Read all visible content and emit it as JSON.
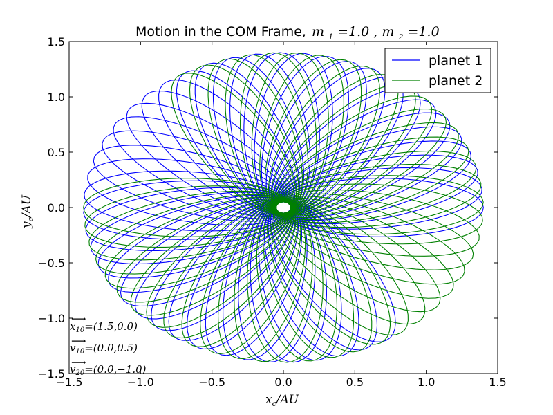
{
  "chart_data": {
    "type": "line",
    "title": "Motion in the COM Frame,",
    "title_math": [
      {
        "base": "m",
        "sub": "1",
        "value": " =1.0"
      },
      {
        "base": "m",
        "sub": "2",
        "value": " =1.0"
      }
    ],
    "xlabel": {
      "base": "x",
      "sub": "c",
      "rest": "/AU"
    },
    "ylabel": {
      "base": "y",
      "sub": "c",
      "rest": "/AU"
    },
    "xlim": [
      -1.5,
      1.5
    ],
    "ylim": [
      -1.5,
      1.5
    ],
    "xticks": [
      "−1.5",
      "−1.0",
      "−0.5",
      "0.0",
      "0.5",
      "1.0",
      "1.5"
    ],
    "yticks": [
      "−1.5",
      "−1.0",
      "−0.5",
      "0.0",
      "0.5",
      "1.0",
      "1.5"
    ],
    "xtick_values": [
      -1.5,
      -1.0,
      -0.5,
      0.0,
      0.5,
      1.0,
      1.5
    ],
    "ytick_values": [
      -1.5,
      -1.0,
      -0.5,
      0.0,
      0.5,
      1.0,
      1.5
    ],
    "grid": false,
    "legend_position": "top-right",
    "series": [
      {
        "name": "planet 1",
        "color": "#0000ff",
        "orbit_count": 44,
        "apoapsis_radius": 1.4,
        "periapsis_radius": 0.05,
        "precession_start_deg": 180,
        "precession_step_deg": 7
      },
      {
        "name": "planet 2",
        "color": "#008000",
        "orbit_count": 44,
        "apoapsis_radius": 1.4,
        "periapsis_radius": 0.05,
        "precession_start_deg": 0,
        "precession_step_deg": 7
      }
    ],
    "annotations": [
      {
        "vec": "x",
        "sub": "10",
        "text": "=(1.5,0.0)"
      },
      {
        "vec": "v",
        "sub": "10",
        "text": "=(0.0,0.5)"
      },
      {
        "vec": "v",
        "sub": "20",
        "text": "=(0.0,−1.0)"
      }
    ]
  }
}
